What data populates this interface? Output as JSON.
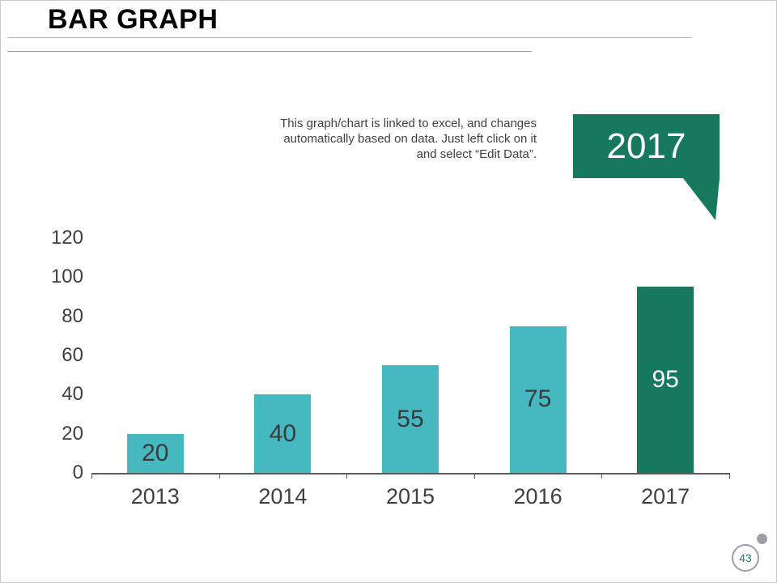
{
  "slide": {
    "title": "BAR GRAPH",
    "note_lines": [
      "This graph/chart is linked to excel, and changes",
      "automatically based on data. Just left click on it",
      "and select “Edit Data”."
    ],
    "callout": {
      "label": "2017",
      "color": "#16795e"
    },
    "page_number": "43"
  },
  "colors": {
    "bar_teal": "#45b8c0",
    "bar_dark_green": "#16795e",
    "axis": "#595959",
    "text_dark": "#404040"
  },
  "chart_data": {
    "type": "bar",
    "title": "",
    "xlabel": "",
    "ylabel": "",
    "categories": [
      "2013",
      "2014",
      "2015",
      "2016",
      "2017"
    ],
    "values": [
      20,
      40,
      55,
      75,
      95
    ],
    "bar_colors": [
      "#45b8c0",
      "#45b8c0",
      "#45b8c0",
      "#45b8c0",
      "#16795e"
    ],
    "value_label_colors": [
      "#3a3a3a",
      "#3a3a3a",
      "#3a3a3a",
      "#3a3a3a",
      "#ffffff"
    ],
    "ylim": [
      0,
      120
    ],
    "yticks": [
      0,
      20,
      40,
      60,
      80,
      100,
      120
    ],
    "grid": false,
    "legend": false,
    "value_label_position": "center-of-bar"
  }
}
